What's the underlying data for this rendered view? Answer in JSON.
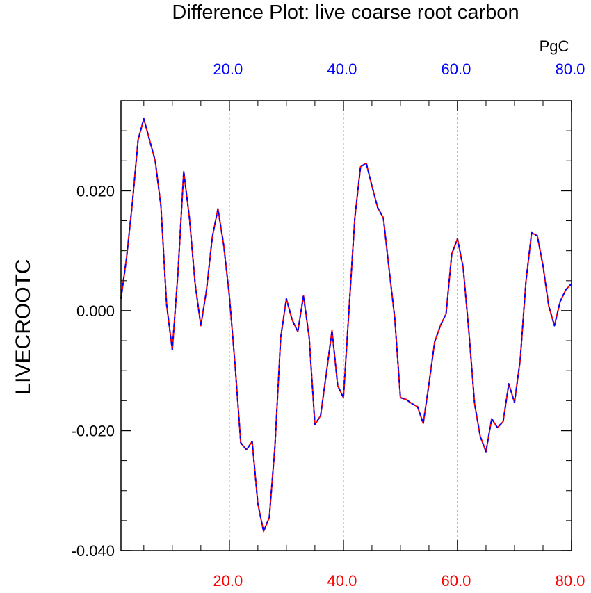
{
  "chart_data": {
    "type": "line",
    "title": "Difference Plot: live coarse root carbon",
    "units": "PgC",
    "ylabel": "LIVECROOTC",
    "xlabel": "",
    "xlim": [
      1,
      80
    ],
    "ylim": [
      -0.04,
      0.035
    ],
    "grid": "vertical dashed lines at top-axis ticks",
    "y_ticks": [
      {
        "value": 0.02,
        "label": "0.020"
      },
      {
        "value": 0.0,
        "label": "0.000"
      },
      {
        "value": -0.02,
        "label": "-0.020"
      },
      {
        "value": -0.04,
        "label": "-0.040"
      }
    ],
    "x_ticks_bottom": [
      {
        "value": 20,
        "label": "20.0"
      },
      {
        "value": 40,
        "label": "40.0"
      },
      {
        "value": 60,
        "label": "60.0"
      },
      {
        "value": 80,
        "label": "80.0"
      }
    ],
    "x_ticks_top": [
      {
        "value": 20,
        "label": "20.0"
      },
      {
        "value": 40,
        "label": "40.0"
      },
      {
        "value": 60,
        "label": "60.0"
      },
      {
        "value": 80,
        "label": "80.0"
      }
    ],
    "colors": {
      "series_a": "#ff0000",
      "series_b": "#0000ff",
      "bottom_axis": "#ff0000",
      "top_axis": "#0000ff",
      "grid": "#888888"
    },
    "x": [
      1,
      2,
      3,
      4,
      5,
      6,
      7,
      8,
      9,
      10,
      11,
      12,
      13,
      14,
      15,
      16,
      17,
      18,
      19,
      20,
      21,
      22,
      23,
      24,
      25,
      26,
      27,
      28,
      29,
      30,
      31,
      32,
      33,
      34,
      35,
      36,
      37,
      38,
      39,
      40,
      41,
      42,
      43,
      44,
      45,
      46,
      47,
      48,
      49,
      50,
      51,
      52,
      53,
      54,
      55,
      56,
      57,
      58,
      59,
      60,
      61,
      62,
      63,
      64,
      65,
      66,
      67,
      68,
      69,
      70,
      71,
      72,
      73,
      74,
      75,
      76,
      77,
      78,
      79,
      80
    ],
    "series": [
      {
        "name": "series A (red)",
        "values": [
          0.002,
          0.009,
          0.018,
          0.0285,
          0.032,
          0.0285,
          0.025,
          0.0175,
          0.001,
          -0.0065,
          0.0065,
          0.0232,
          0.0155,
          0.0045,
          -0.0025,
          0.0035,
          0.0122,
          0.017,
          0.011,
          0.0025,
          -0.009,
          -0.022,
          -0.0232,
          -0.0218,
          -0.0322,
          -0.0368,
          -0.0345,
          -0.0225,
          -0.0045,
          0.002,
          -0.0015,
          -0.0035,
          0.0025,
          -0.0045,
          -0.019,
          -0.0175,
          -0.0105,
          -0.0033,
          -0.0125,
          -0.0145,
          0.0005,
          0.0155,
          0.024,
          0.0246,
          0.0208,
          0.0172,
          0.0155,
          0.007,
          -0.0012,
          -0.0145,
          -0.0148,
          -0.0155,
          -0.016,
          -0.0188,
          -0.0122,
          -0.0052,
          -0.0025,
          -0.0005,
          0.0095,
          0.012,
          0.0072,
          -0.0035,
          -0.0155,
          -0.021,
          -0.0235,
          -0.018,
          -0.0195,
          -0.0185,
          -0.0122,
          -0.0153,
          -0.0082,
          0.0048,
          0.013,
          0.0125,
          0.0075,
          0.0008,
          -0.0025,
          0.0015,
          0.0035,
          0.0045
        ]
      },
      {
        "name": "series B (blue)",
        "values": [
          0.002,
          0.009,
          0.018,
          0.0285,
          0.032,
          0.0285,
          0.025,
          0.0175,
          0.001,
          -0.0065,
          0.0065,
          0.0232,
          0.0155,
          0.0045,
          -0.0025,
          0.0035,
          0.0122,
          0.017,
          0.011,
          0.0025,
          -0.009,
          -0.022,
          -0.0232,
          -0.0218,
          -0.0322,
          -0.0368,
          -0.0345,
          -0.0225,
          -0.0045,
          0.002,
          -0.0015,
          -0.0035,
          0.0025,
          -0.0045,
          -0.019,
          -0.0175,
          -0.0105,
          -0.0033,
          -0.0125,
          -0.0145,
          0.0005,
          0.0155,
          0.024,
          0.0246,
          0.0208,
          0.0172,
          0.0155,
          0.007,
          -0.0012,
          -0.0145,
          -0.0148,
          -0.0155,
          -0.016,
          -0.0188,
          -0.0122,
          -0.0052,
          -0.0025,
          -0.0005,
          0.0095,
          0.012,
          0.0072,
          -0.0035,
          -0.0155,
          -0.021,
          -0.0235,
          -0.018,
          -0.0195,
          -0.0185,
          -0.0122,
          -0.0153,
          -0.0082,
          0.0048,
          0.013,
          0.0125,
          0.0075,
          0.0008,
          -0.0025,
          0.0015,
          0.0035,
          0.0045
        ]
      }
    ]
  }
}
